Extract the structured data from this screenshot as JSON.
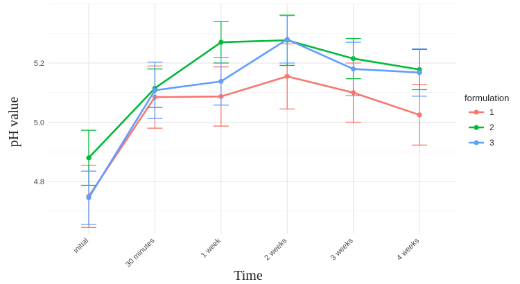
{
  "chart_data": {
    "type": "line",
    "xlabel": "Time",
    "ylabel": "pH value",
    "categories": [
      "initial",
      "30 minutes",
      "1 week",
      "2 weeks",
      "3 weeks",
      "4 weeks"
    ],
    "ylim": [
      4.62,
      5.4
    ],
    "yticks": [
      4.8,
      5.0,
      5.2
    ],
    "ytick_labels": [
      "4.8",
      "5.0",
      "5.2"
    ],
    "grid": true,
    "legend": {
      "title": "formulation",
      "position": "right"
    },
    "series": [
      {
        "name": "1",
        "color": "#F8766D",
        "values": [
          4.75,
          5.085,
          5.087,
          5.155,
          5.1,
          5.025
        ],
        "err": [
          0.105,
          0.105,
          0.1,
          0.11,
          0.1,
          0.102
        ]
      },
      {
        "name": "2",
        "color": "#00BA38",
        "values": [
          4.88,
          5.115,
          5.27,
          5.277,
          5.215,
          5.178
        ],
        "err": [
          0.093,
          0.065,
          0.07,
          0.085,
          0.068,
          0.068
        ]
      },
      {
        "name": "3",
        "color": "#619CFF",
        "values": [
          4.745,
          5.108,
          5.138,
          5.28,
          5.18,
          5.168
        ],
        "err": [
          0.09,
          0.095,
          0.08,
          0.08,
          0.09,
          0.08
        ]
      }
    ]
  }
}
